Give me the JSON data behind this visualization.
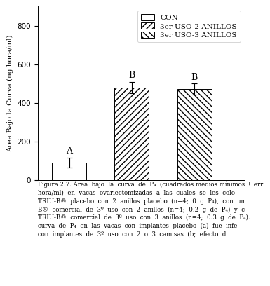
{
  "categories": [
    "CON",
    "3er USO-2 ANILLOS",
    "3er USO-3 ANILLOS"
  ],
  "values": [
    90,
    480,
    472
  ],
  "errors": [
    25,
    30,
    28
  ],
  "letters": [
    "A",
    "B",
    "B"
  ],
  "bar_colors": [
    "white",
    "white",
    "white"
  ],
  "hatches": [
    "",
    "////",
    "\\\\\\\\"
  ],
  "edgecolors": [
    "black",
    "black",
    "black"
  ],
  "legend_labels": [
    "CON",
    "3er USO-2 ANILLOS",
    "3er USO-3 ANILLOS"
  ],
  "legend_hatches": [
    "",
    "////",
    "\\\\\\\\"
  ],
  "ylabel": "Area Bajo la Curva (ng hora/ml)",
  "ylim": [
    0,
    900
  ],
  "yticks": [
    0,
    200,
    400,
    600,
    800
  ],
  "bar_positions": [
    1,
    2,
    3
  ],
  "bar_width": 0.55,
  "background_color": "white",
  "text_color": "black",
  "fontsize_ylabel": 7.5,
  "fontsize_ticks": 7.5,
  "fontsize_legend": 7.5,
  "fontsize_letters": 9,
  "fontsize_caption": 6.2,
  "caption_line1": "Figura 2.7. Área  bajo  la  curva  de  P₄  (cuadrados medios mínimos ± err",
  "caption_line2": "hora/ml)  en  vacas  ovariectomizadas  a  las  cuales  se  les  colo",
  "caption_line3": "TRIU-B®  placebo  con  2  anillos  placebo  (n=4;  0  g  P₄),  con  un",
  "caption_line4": "B®  comercial  de  3º  uso  con  2  anillos  (n=4;  0.2  g  de  P₄)  y  c",
  "caption_line5": "TRIU-B®  comercial  de  3º  uso  con  3  anillos  (n=4;  0.3  g  de  P₄).",
  "caption_line6": "curva  de  P₄  en  las  vacas  con  implantes  placebo  (a)  fue  infe",
  "caption_line7": "con  implantes  de  3º  uso  con  2  o  3  camisas  (b;  efecto  d"
}
